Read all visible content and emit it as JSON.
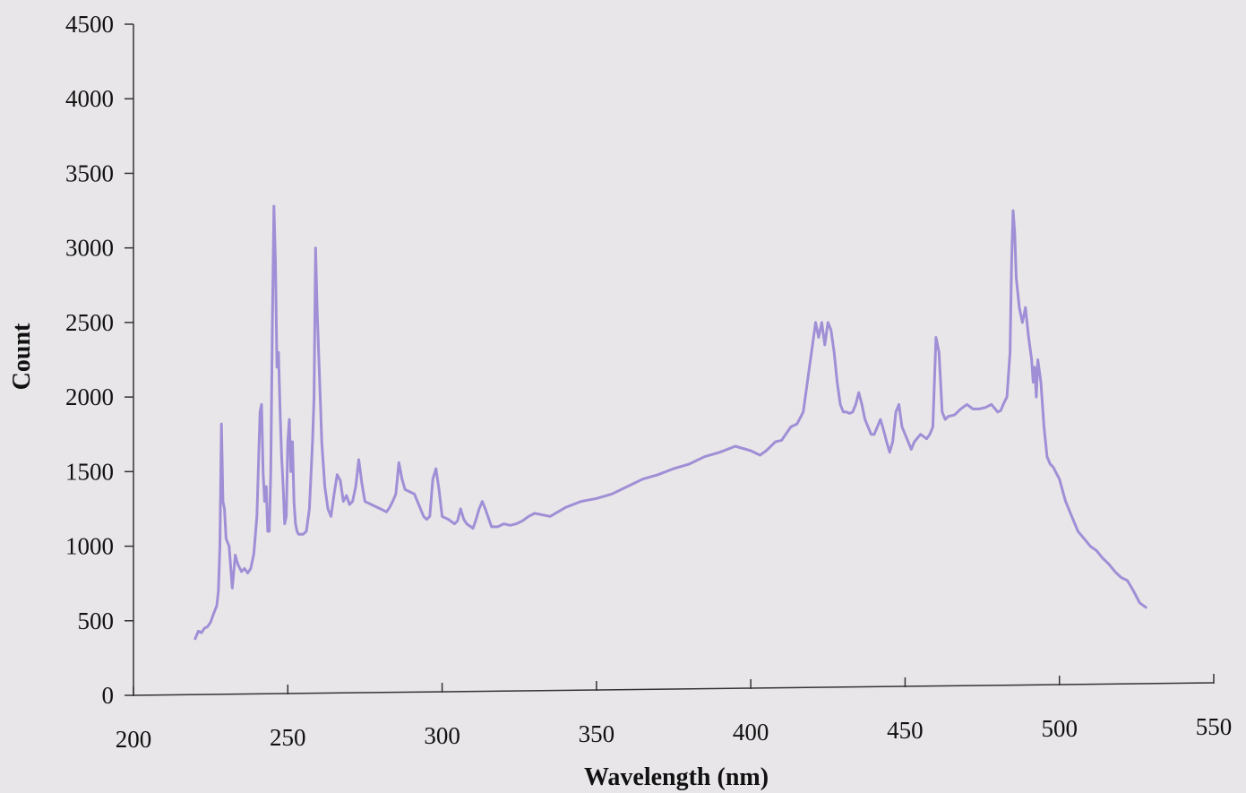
{
  "chart_data": {
    "type": "line",
    "title": "",
    "xlabel": "Wavelength (nm)",
    "ylabel": "Count",
    "xlim": [
      200,
      550
    ],
    "ylim": [
      0,
      4500
    ],
    "x_ticks": [
      200,
      250,
      300,
      350,
      400,
      450,
      500,
      550
    ],
    "y_ticks": [
      0,
      500,
      1000,
      1500,
      2000,
      2500,
      3000,
      3500,
      4000,
      4500
    ],
    "grid": false,
    "legend": "none",
    "series": [
      {
        "color": "#a08fd6",
        "x": [
          220,
          221,
          222,
          223,
          224,
          225,
          226,
          227,
          227.5,
          228,
          228.5,
          229,
          229.5,
          230,
          231,
          232,
          233,
          233.5,
          234,
          235,
          236,
          237,
          238,
          239,
          240,
          241,
          241.5,
          242,
          242.5,
          243,
          243.5,
          244,
          244.5,
          245,
          245.5,
          246,
          246.5,
          247,
          247.5,
          248,
          248.5,
          249,
          249.5,
          250,
          250.5,
          251,
          251.5,
          252,
          252.5,
          253,
          253.5,
          254,
          255,
          256,
          257,
          258,
          258.5,
          259,
          259.5,
          260,
          260.5,
          261,
          262,
          263,
          264,
          265,
          266,
          267,
          268,
          269,
          270,
          271,
          272,
          273,
          274,
          275,
          276,
          278,
          280,
          282,
          283,
          284,
          285,
          286,
          287,
          288,
          289,
          290,
          291,
          292,
          294,
          295,
          296,
          297,
          298,
          299,
          300,
          302,
          304,
          305,
          306,
          307,
          308,
          310,
          311,
          312,
          313,
          314,
          316,
          318,
          320,
          322,
          324,
          326,
          328,
          330,
          335,
          340,
          345,
          350,
          355,
          360,
          365,
          370,
          375,
          380,
          385,
          390,
          395,
          400,
          403,
          405,
          408,
          410,
          413,
          415,
          417,
          418,
          419,
          420,
          421,
          422,
          423,
          424,
          425,
          426,
          427,
          428,
          429,
          430,
          431,
          432,
          433,
          434,
          435,
          436,
          437,
          438,
          439,
          440,
          441,
          442,
          443,
          444,
          445,
          446,
          447,
          448,
          449,
          450,
          451,
          452,
          453,
          455,
          457,
          458,
          459,
          460,
          461,
          462,
          463,
          464,
          466,
          468,
          470,
          472,
          474,
          476,
          478,
          480,
          481,
          482,
          483,
          484,
          484.5,
          485,
          485.5,
          486,
          487,
          488,
          489,
          490,
          491,
          491.5,
          492,
          492.5,
          493,
          494,
          495,
          496,
          497,
          498,
          500,
          502,
          504,
          506,
          508,
          510,
          512,
          514,
          516,
          518,
          520,
          522,
          524,
          526,
          528
        ],
        "values": [
          380,
          430,
          420,
          450,
          460,
          490,
          550,
          600,
          700,
          1000,
          1820,
          1300,
          1250,
          1050,
          1000,
          720,
          940,
          900,
          870,
          830,
          850,
          820,
          850,
          950,
          1200,
          1900,
          1950,
          1500,
          1300,
          1400,
          1100,
          1100,
          1500,
          2500,
          3280,
          2900,
          2200,
          2300,
          1900,
          1600,
          1400,
          1150,
          1200,
          1700,
          1850,
          1500,
          1700,
          1300,
          1150,
          1100,
          1080,
          1080,
          1080,
          1100,
          1250,
          1700,
          2000,
          3000,
          2600,
          2300,
          2000,
          1700,
          1400,
          1250,
          1200,
          1350,
          1480,
          1440,
          1300,
          1340,
          1280,
          1300,
          1400,
          1580,
          1420,
          1300,
          1290,
          1270,
          1250,
          1230,
          1260,
          1300,
          1350,
          1560,
          1450,
          1380,
          1370,
          1360,
          1350,
          1300,
          1200,
          1180,
          1200,
          1450,
          1520,
          1380,
          1200,
          1180,
          1150,
          1170,
          1250,
          1180,
          1150,
          1120,
          1180,
          1250,
          1300,
          1250,
          1130,
          1130,
          1150,
          1140,
          1150,
          1170,
          1200,
          1220,
          1200,
          1260,
          1300,
          1320,
          1350,
          1400,
          1450,
          1480,
          1520,
          1550,
          1600,
          1630,
          1670,
          1640,
          1610,
          1640,
          1700,
          1710,
          1800,
          1820,
          1900,
          2050,
          2200,
          2350,
          2500,
          2400,
          2500,
          2350,
          2500,
          2450,
          2300,
          2100,
          1950,
          1900,
          1900,
          1890,
          1900,
          1950,
          2030,
          1950,
          1850,
          1800,
          1750,
          1750,
          1800,
          1850,
          1780,
          1700,
          1630,
          1700,
          1900,
          1950,
          1800,
          1750,
          1700,
          1650,
          1700,
          1750,
          1720,
          1750,
          1800,
          2400,
          2300,
          1900,
          1850,
          1870,
          1880,
          1920,
          1950,
          1920,
          1920,
          1930,
          1950,
          1900,
          1910,
          1960,
          2000,
          2300,
          2900,
          3250,
          3100,
          2800,
          2600,
          2500,
          2600,
          2400,
          2250,
          2100,
          2200,
          2000,
          2250,
          2100,
          1800,
          1600,
          1550,
          1530,
          1450,
          1300,
          1200,
          1100,
          1050,
          1000,
          970,
          920,
          880,
          830,
          790,
          770,
          700,
          620,
          590
        ]
      }
    ]
  }
}
